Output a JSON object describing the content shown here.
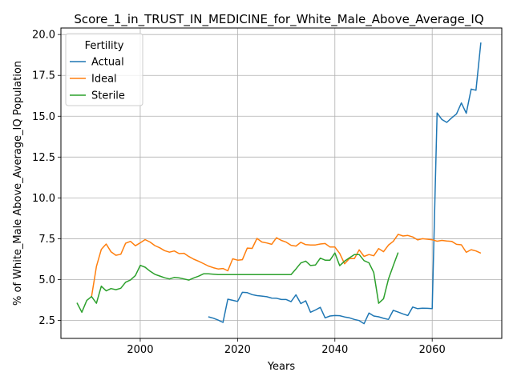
{
  "chart_data": {
    "type": "line",
    "title": "Score_1_in_TRUST_IN_MEDICINE_for_White_Male_Above_Average_IQ",
    "xlabel": "Years",
    "ylabel": "% of White_Male Above_Average_IQ Population",
    "xlim": [
      1983.7,
      2074.3
    ],
    "ylim": [
      1.4,
      20.4
    ],
    "xticks": [
      2000,
      2020,
      2040,
      2060
    ],
    "yticks": [
      2.5,
      5.0,
      7.5,
      10.0,
      12.5,
      15.0,
      17.5,
      20.0
    ],
    "xtick_labels": [
      "2000",
      "2020",
      "2040",
      "2060"
    ],
    "ytick_labels": [
      "2.5",
      "5.0",
      "7.5",
      "10.0",
      "12.5",
      "15.0",
      "17.5",
      "20.0"
    ],
    "grid": true,
    "legend": {
      "title": "Fertility",
      "placement": "top-left"
    },
    "series": [
      {
        "name": "Actual",
        "color": "#1f77b4",
        "x": [
          2014,
          2015,
          2016,
          2017,
          2018,
          2019,
          2020,
          2021,
          2022,
          2023,
          2024,
          2025,
          2026,
          2027,
          2028,
          2029,
          2030,
          2031,
          2032,
          2033,
          2034,
          2035,
          2036,
          2037,
          2038,
          2039,
          2040,
          2041,
          2042,
          2043,
          2044,
          2045,
          2046,
          2047,
          2048,
          2049,
          2050,
          2051,
          2052,
          2053,
          2054,
          2055,
          2056,
          2057,
          2058,
          2059,
          2060,
          2061,
          2062,
          2063,
          2064,
          2065,
          2066,
          2067,
          2068,
          2069,
          2070
        ],
        "y": [
          2.72,
          2.64,
          2.52,
          2.38,
          3.8,
          3.73,
          3.66,
          4.22,
          4.2,
          4.08,
          4.02,
          3.99,
          3.95,
          3.87,
          3.86,
          3.78,
          3.78,
          3.65,
          4.07,
          3.53,
          3.7,
          3.0,
          3.14,
          3.3,
          2.66,
          2.77,
          2.8,
          2.79,
          2.71,
          2.66,
          2.56,
          2.49,
          2.3,
          2.95,
          2.77,
          2.72,
          2.63,
          2.56,
          3.12,
          3.01,
          2.9,
          2.8,
          3.32,
          3.22,
          3.25,
          3.24,
          3.22,
          15.2,
          14.8,
          14.62,
          14.9,
          15.14,
          15.81,
          15.18,
          16.66,
          16.59,
          19.51
        ]
      },
      {
        "name": "Ideal",
        "color": "#ff7f0e",
        "x": [
          1990,
          1991,
          1992,
          1993,
          1994,
          1995,
          1996,
          1997,
          1998,
          1999,
          2000,
          2001,
          2002,
          2003,
          2004,
          2005,
          2006,
          2007,
          2008,
          2009,
          2010,
          2011,
          2012,
          2013,
          2014,
          2015,
          2016,
          2017,
          2018,
          2019,
          2020,
          2021,
          2022,
          2023,
          2024,
          2025,
          2026,
          2027,
          2028,
          2029,
          2030,
          2031,
          2032,
          2033,
          2034,
          2035,
          2036,
          2037,
          2038,
          2039,
          2040,
          2041,
          2042,
          2043,
          2044,
          2045,
          2046,
          2047,
          2048,
          2049,
          2050,
          2051,
          2052,
          2053,
          2054,
          2055,
          2056,
          2057,
          2058,
          2059,
          2060,
          2061,
          2062,
          2063,
          2064,
          2065,
          2066,
          2067,
          2068,
          2069,
          2070
        ],
        "y": [
          3.95,
          5.8,
          6.85,
          7.18,
          6.7,
          6.49,
          6.55,
          7.22,
          7.34,
          7.07,
          7.25,
          7.45,
          7.3,
          7.08,
          6.95,
          6.77,
          6.68,
          6.75,
          6.59,
          6.61,
          6.41,
          6.25,
          6.12,
          5.98,
          5.83,
          5.73,
          5.65,
          5.68,
          5.54,
          6.27,
          6.19,
          6.22,
          6.93,
          6.91,
          7.52,
          7.3,
          7.24,
          7.16,
          7.56,
          7.4,
          7.29,
          7.1,
          7.05,
          7.28,
          7.14,
          7.12,
          7.12,
          7.18,
          7.21,
          6.99,
          6.99,
          6.6,
          5.97,
          6.29,
          6.28,
          6.82,
          6.42,
          6.53,
          6.46,
          6.9,
          6.71,
          7.11,
          7.34,
          7.77,
          7.67,
          7.7,
          7.61,
          7.43,
          7.5,
          7.47,
          7.44,
          7.35,
          7.4,
          7.36,
          7.34,
          7.16,
          7.13,
          6.67,
          6.83,
          6.75,
          6.62
        ]
      },
      {
        "name": "Sterile",
        "color": "#2ca02c",
        "x": [
          1987,
          1988,
          1989,
          1990,
          1991,
          1992,
          1993,
          1994,
          1995,
          1996,
          1997,
          1998,
          1999,
          2000,
          2001,
          2002,
          2003,
          2004,
          2005,
          2006,
          2007,
          2008,
          2009,
          2010,
          2011,
          2012,
          2013,
          2014,
          2015,
          2016,
          2017,
          2018,
          2019,
          2020,
          2021,
          2022,
          2023,
          2024,
          2025,
          2026,
          2027,
          2028,
          2029,
          2030,
          2031,
          2032,
          2033,
          2034,
          2035,
          2036,
          2037,
          2038,
          2039,
          2040,
          2041,
          2042,
          2043,
          2044,
          2045,
          2046,
          2047,
          2048,
          2049,
          2050,
          2051,
          2052,
          2053
        ],
        "y": [
          3.58,
          3.0,
          3.72,
          3.96,
          3.55,
          4.6,
          4.31,
          4.45,
          4.38,
          4.47,
          4.84,
          4.98,
          5.25,
          5.87,
          5.76,
          5.52,
          5.32,
          5.22,
          5.11,
          5.04,
          5.13,
          5.1,
          5.04,
          4.97,
          5.1,
          5.21,
          5.35,
          5.35,
          5.33,
          5.31,
          5.31,
          5.31,
          5.31,
          5.31,
          5.31,
          5.31,
          5.31,
          5.31,
          5.31,
          5.31,
          5.31,
          5.31,
          5.31,
          5.31,
          5.31,
          5.65,
          6.02,
          6.13,
          5.86,
          5.89,
          6.31,
          6.19,
          6.19,
          6.63,
          5.85,
          6.13,
          6.33,
          6.53,
          6.53,
          6.16,
          6.03,
          5.43,
          3.55,
          3.83,
          5.03,
          5.85,
          6.66
        ]
      }
    ]
  }
}
